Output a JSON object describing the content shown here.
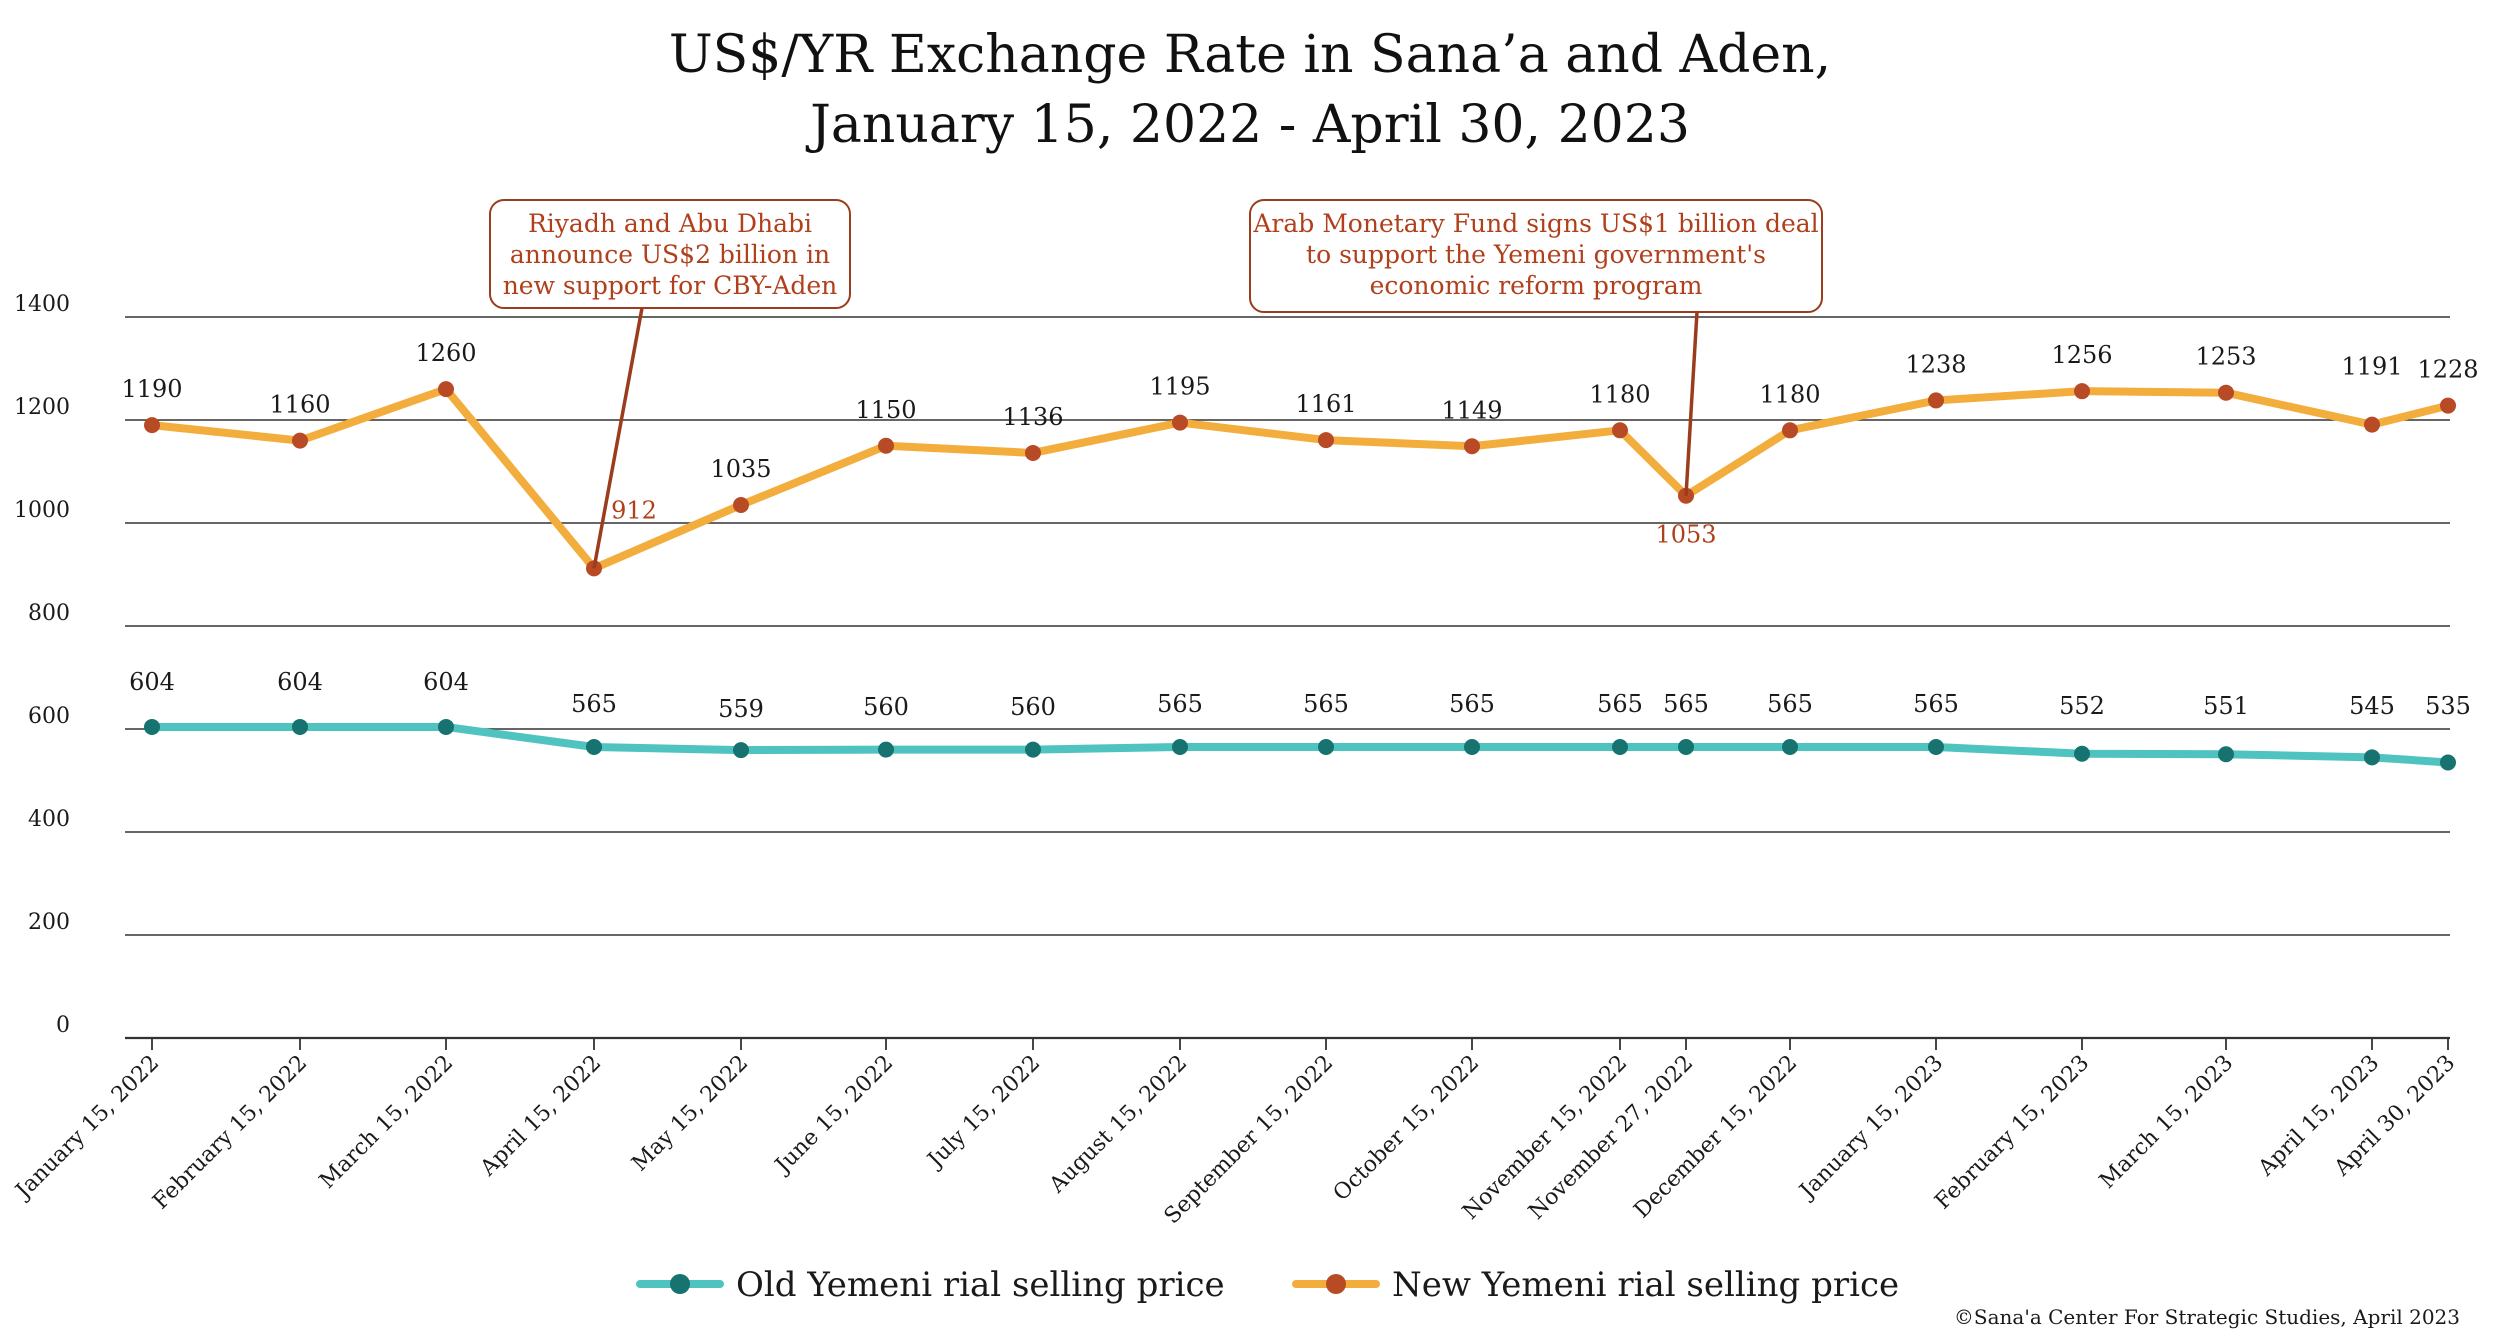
{
  "title_lines": [
    "US$/YR Exchange Rate in Sana’a and Aden,",
    "January 15, 2022 - April 30, 2023"
  ],
  "credit": "©Sana'a Center For Strategic Studies, April 2023",
  "colors": {
    "old_line": "#4fc3bf",
    "old_marker": "#16736f",
    "new_line": "#f2ad3c",
    "new_marker": "#b84a25",
    "annotation": "#b0401c",
    "grid": "#333333"
  },
  "chart_data": {
    "type": "line",
    "x": [
      "January 15, 2022",
      "February 15, 2022",
      "March 15, 2022",
      "April 15, 2022",
      "May 15, 2022",
      "June 15, 2022",
      "July 15, 2022",
      "August 15, 2022",
      "September 15, 2022",
      "October 15, 2022",
      "November 15, 2022",
      "November 27, 2022",
      "December 15, 2022",
      "January 15, 2023",
      "February 15, 2023",
      "March 15, 2023",
      "April 15, 2023",
      "April 30, 2023"
    ],
    "series": [
      {
        "name": "Old Yemeni rial selling price",
        "values": [
          604,
          604,
          604,
          565,
          559,
          560,
          560,
          565,
          565,
          565,
          565,
          565,
          565,
          565,
          552,
          551,
          545,
          535
        ],
        "labels": [
          "604",
          "604",
          "604",
          "565",
          "559",
          "560",
          "560",
          "565",
          "565",
          "565",
          "565",
          "565",
          "565",
          "565",
          "552",
          "551",
          "545",
          "535"
        ]
      },
      {
        "name": "New Yemeni rial selling price",
        "values": [
          1190,
          1160,
          1260,
          912,
          1035,
          1150,
          1136,
          1195,
          1161,
          1149,
          1180,
          1053,
          1180,
          1238,
          1256,
          1253,
          1191,
          1228
        ],
        "labels": [
          "1190",
          "1160",
          "1260",
          "912",
          "1035",
          "1150",
          "1136",
          "1195",
          "1161",
          "1149",
          "1180",
          "1053",
          "1180",
          "1238",
          "1256",
          "1253",
          "1191",
          "1228"
        ]
      }
    ],
    "yticks": [
      0,
      200,
      400,
      600,
      800,
      1000,
      1200,
      1400
    ],
    "ylim": [
      0,
      1400
    ],
    "grid": true,
    "legend": "bottom",
    "annotations": [
      {
        "x": "April 15, 2022",
        "lines": [
          "Riyadh and Abu Dhabi",
          "announce US$2 billion in",
          "new support for CBY-Aden"
        ]
      },
      {
        "x": "November 27, 2022",
        "lines": [
          "Arab Monetary Fund signs US$1 billion deal",
          "to support the Yemeni government's",
          "economic reform program"
        ]
      }
    ]
  }
}
